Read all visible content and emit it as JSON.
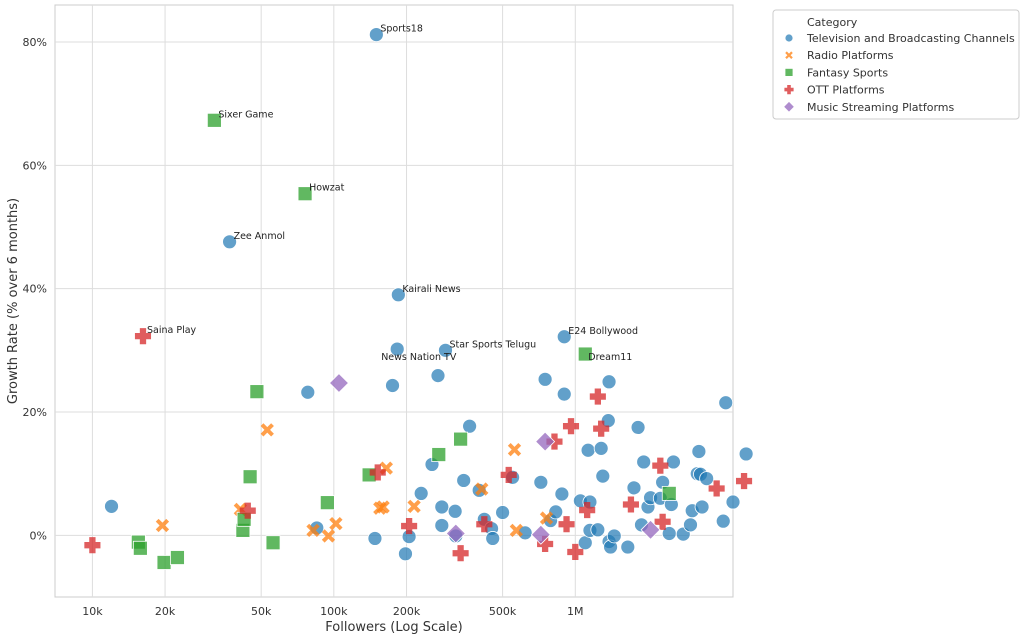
{
  "chart_data": {
    "type": "scatter",
    "title": "",
    "xlabel": "Followers (Log Scale)",
    "ylabel": "Growth Rate (% over 6 months)",
    "xscale": "log",
    "xlim": [
      7000,
      4500000
    ],
    "ylim": [
      -10,
      86
    ],
    "x_ticks": [
      {
        "value": 10000,
        "label": "10k"
      },
      {
        "value": 20000,
        "label": "20k"
      },
      {
        "value": 50000,
        "label": "50k"
      },
      {
        "value": 100000,
        "label": "100k"
      },
      {
        "value": 200000,
        "label": "200k"
      },
      {
        "value": 500000,
        "label": "500k"
      },
      {
        "value": 1000000,
        "label": "1M"
      }
    ],
    "y_ticks": [
      {
        "value": 0,
        "label": "0%"
      },
      {
        "value": 20,
        "label": "20%"
      },
      {
        "value": 40,
        "label": "40%"
      },
      {
        "value": 60,
        "label": "60%"
      },
      {
        "value": 80,
        "label": "80%"
      }
    ],
    "grid": true,
    "legend": {
      "title": "Category",
      "position": "outside-top-right"
    },
    "series": [
      {
        "name": "Television and Broadcasting Channels",
        "marker": "circle",
        "color": "#1f77b4",
        "points": [
          [
            12000,
            4.7
          ],
          [
            85000,
            1.2
          ],
          [
            78000,
            23.2
          ],
          [
            150000,
            81.2
          ],
          [
            148000,
            -0.5
          ],
          [
            175000,
            24.3
          ],
          [
            185000,
            39
          ],
          [
            183000,
            30.2
          ],
          [
            198000,
            -3
          ],
          [
            205000,
            -0.2
          ],
          [
            230000,
            6.8
          ],
          [
            255000,
            11.5
          ],
          [
            270000,
            25.9
          ],
          [
            280000,
            4.6
          ],
          [
            280000,
            1.6
          ],
          [
            320000,
            -0.1
          ],
          [
            318000,
            3.9
          ],
          [
            345000,
            8.9
          ],
          [
            365000,
            17.7
          ],
          [
            400000,
            7.3
          ],
          [
            420000,
            2.6
          ],
          [
            450000,
            1.1
          ],
          [
            455000,
            -0.5
          ],
          [
            500000,
            3.7
          ],
          [
            550000,
            9.4
          ],
          [
            620000,
            0.4
          ],
          [
            720000,
            8.6
          ],
          [
            750000,
            25.3
          ],
          [
            790000,
            2.4
          ],
          [
            830000,
            3.8
          ],
          [
            880000,
            6.7
          ],
          [
            900000,
            22.9
          ],
          [
            1050000,
            5.6
          ],
          [
            1100000,
            -1.2
          ],
          [
            1130000,
            13.8
          ],
          [
            1150000,
            5.4
          ],
          [
            1150000,
            0.8
          ],
          [
            1240000,
            0.9
          ],
          [
            1280000,
            14.1
          ],
          [
            1300000,
            9.6
          ],
          [
            1370000,
            18.6
          ],
          [
            1380000,
            24.9
          ],
          [
            1380000,
            -1
          ],
          [
            1400000,
            -1.9
          ],
          [
            1450000,
            -0.1
          ],
          [
            1650000,
            -1.9
          ],
          [
            1750000,
            7.7
          ],
          [
            1820000,
            17.5
          ],
          [
            1880000,
            1.7
          ],
          [
            1920000,
            11.9
          ],
          [
            2000000,
            4.6
          ],
          [
            2050000,
            6.1
          ],
          [
            2250000,
            6
          ],
          [
            2300000,
            8.6
          ],
          [
            2450000,
            0.3
          ],
          [
            2500000,
            5
          ],
          [
            2550000,
            11.9
          ],
          [
            2800000,
            0.2
          ],
          [
            3000000,
            1.7
          ],
          [
            3050000,
            4
          ],
          [
            3200000,
            10
          ],
          [
            3250000,
            13.6
          ],
          [
            3300000,
            9.9
          ],
          [
            3350000,
            4.6
          ],
          [
            3500000,
            9.2
          ],
          [
            4100000,
            2.3
          ],
          [
            4200000,
            21.5
          ],
          [
            4500000,
            5.4
          ],
          [
            5100000,
            13.2
          ],
          [
            900000,
            32.2
          ],
          [
            290000,
            30
          ]
        ]
      },
      {
        "name": "Radio Platforms",
        "marker": "x",
        "color": "#ff7f0e",
        "points": [
          [
            19500,
            1.6
          ],
          [
            41000,
            4.2
          ],
          [
            53000,
            17.1
          ],
          [
            82000,
            0.8
          ],
          [
            95000,
            -0.1
          ],
          [
            102000,
            1.9
          ],
          [
            155000,
            4.4
          ],
          [
            160000,
            4.6
          ],
          [
            165000,
            10.9
          ],
          [
            215000,
            4.7
          ],
          [
            410000,
            7.5
          ],
          [
            560000,
            13.9
          ],
          [
            570000,
            0.8
          ],
          [
            760000,
            2.8
          ]
        ]
      },
      {
        "name": "Fantasy Sports",
        "marker": "square",
        "color": "#2ca02c",
        "points": [
          [
            32000,
            67.3
          ],
          [
            76000,
            55.4
          ],
          [
            15500,
            -1.1
          ],
          [
            15800,
            -2.1
          ],
          [
            19800,
            -4.4
          ],
          [
            22500,
            -3.6
          ],
          [
            42000,
            0.8
          ],
          [
            42500,
            2.6
          ],
          [
            45000,
            9.5
          ],
          [
            48000,
            23.3
          ],
          [
            56000,
            -1.2
          ],
          [
            94000,
            5.3
          ],
          [
            140000,
            9.8
          ],
          [
            272000,
            13.1
          ],
          [
            335000,
            15.6
          ],
          [
            1100000,
            29.4
          ],
          [
            2450000,
            6.8
          ]
        ]
      },
      {
        "name": "OTT Platforms",
        "marker": "plus",
        "color": "#d62728",
        "points": [
          [
            10000,
            -1.6
          ],
          [
            16200,
            32.3
          ],
          [
            44000,
            4
          ],
          [
            152000,
            10.2
          ],
          [
            205000,
            1.5
          ],
          [
            335000,
            -2.9
          ],
          [
            420000,
            1.8
          ],
          [
            530000,
            9.8
          ],
          [
            750000,
            -1.4
          ],
          [
            820000,
            15.2
          ],
          [
            920000,
            1.8
          ],
          [
            960000,
            17.7
          ],
          [
            1000000,
            -2.7
          ],
          [
            1120000,
            4.1
          ],
          [
            1240000,
            22.5
          ],
          [
            1280000,
            17.3
          ],
          [
            1700000,
            5
          ],
          [
            2250000,
            11.3
          ],
          [
            2300000,
            2.2
          ],
          [
            3850000,
            7.6
          ],
          [
            5000000,
            8.8
          ]
        ]
      },
      {
        "name": "Music Streaming Platforms",
        "marker": "diamond",
        "color": "#9467bd",
        "points": [
          [
            105000,
            24.7
          ],
          [
            320000,
            0.3
          ],
          [
            720000,
            0.1
          ],
          [
            750000,
            15.2
          ],
          [
            2050000,
            0.9
          ]
        ]
      }
    ],
    "annotations": [
      {
        "text": "Sports18",
        "x": 150000,
        "y": 81.2
      },
      {
        "text": "Sixer Game",
        "x": 32000,
        "y": 67.3
      },
      {
        "text": "Howzat",
        "x": 76000,
        "y": 55.4
      },
      {
        "text": "Zee Anmol",
        "x": 37000,
        "y": 47.6
      },
      {
        "text": "Kairali News",
        "x": 185000,
        "y": 39
      },
      {
        "text": "Saina Play",
        "x": 16200,
        "y": 32.3
      },
      {
        "text": "E24 Bollywood",
        "x": 900000,
        "y": 32.2
      },
      {
        "text": "Star Sports Telugu",
        "x": 290000,
        "y": 30
      },
      {
        "text": "News Nation TV",
        "x": 183000,
        "y": 30.2
      },
      {
        "text": "Dream11",
        "x": 1100000,
        "y": 29.4
      }
    ],
    "extra_points": [
      {
        "series": "Television and Broadcasting Channels",
        "x": 37000,
        "y": 47.6
      }
    ]
  }
}
